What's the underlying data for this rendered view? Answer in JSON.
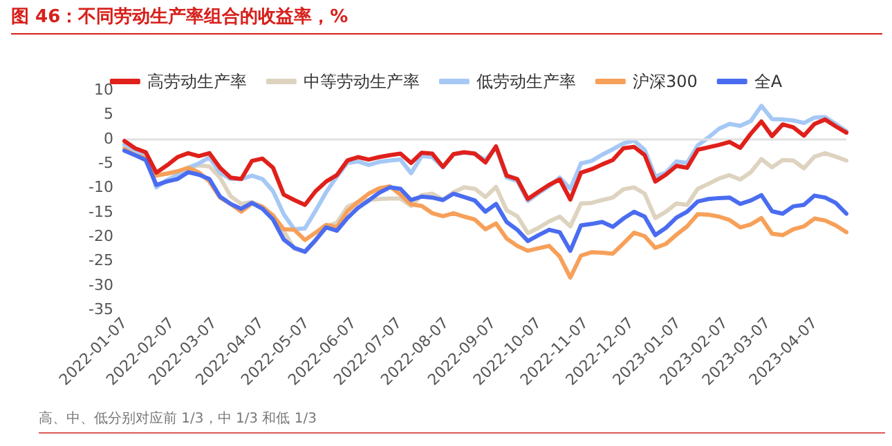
{
  "chart_data": {
    "type": "line",
    "title": "图 46：不同劳动生产率组合的收益率，%",
    "annotations": [
      "高、中、低分别对应前 1/3，中 1/3 和低 1/3"
    ],
    "x": [
      "2022-01-07",
      "2022-01-14",
      "2022-01-21",
      "2022-01-28",
      "2022-02-04",
      "2022-02-11",
      "2022-02-18",
      "2022-02-25",
      "2022-03-04",
      "2022-03-11",
      "2022-03-18",
      "2022-03-25",
      "2022-04-01",
      "2022-04-08",
      "2022-04-15",
      "2022-04-22",
      "2022-04-29",
      "2022-05-06",
      "2022-05-13",
      "2022-05-20",
      "2022-05-27",
      "2022-06-03",
      "2022-06-10",
      "2022-06-17",
      "2022-06-24",
      "2022-07-01",
      "2022-07-08",
      "2022-07-15",
      "2022-07-22",
      "2022-07-29",
      "2022-08-05",
      "2022-08-12",
      "2022-08-19",
      "2022-08-26",
      "2022-09-02",
      "2022-09-09",
      "2022-09-16",
      "2022-09-23",
      "2022-09-30",
      "2022-10-07",
      "2022-10-14",
      "2022-10-21",
      "2022-10-28",
      "2022-11-04",
      "2022-11-11",
      "2022-11-18",
      "2022-11-25",
      "2022-12-02",
      "2022-12-09",
      "2022-12-16",
      "2022-12-23",
      "2022-12-30",
      "2023-01-06",
      "2023-01-13",
      "2023-01-20",
      "2023-01-27",
      "2023-02-03",
      "2023-02-10",
      "2023-02-17",
      "2023-02-24",
      "2023-03-03",
      "2023-03-10",
      "2023-03-17",
      "2023-03-24",
      "2023-03-31",
      "2023-04-07",
      "2023-04-14",
      "2023-04-21",
      "2023-04-28"
    ],
    "series": [
      {
        "name": "高劳动生产率",
        "color": "#e0201b",
        "values": [
          -0.5,
          -2.0,
          -2.8,
          -7.0,
          -5.5,
          -3.8,
          -3.0,
          -3.6,
          -3.0,
          -6.0,
          -8.0,
          -8.3,
          -4.6,
          -4.1,
          -6.0,
          -11.5,
          -12.6,
          -13.6,
          -10.8,
          -8.8,
          -7.5,
          -4.5,
          -3.8,
          -4.3,
          -3.8,
          -3.4,
          -3.1,
          -5.0,
          -2.9,
          -3.1,
          -5.8,
          -3.2,
          -2.8,
          -3.1,
          -4.9,
          -1.6,
          -7.6,
          -8.3,
          -12.4,
          -10.9,
          -9.5,
          -8.4,
          -12.5,
          -7.0,
          -6.3,
          -5.3,
          -4.4,
          -2.0,
          -1.7,
          -3.4,
          -8.8,
          -7.4,
          -5.6,
          -6.0,
          -2.3,
          -1.8,
          -1.3,
          -0.7,
          -1.9,
          1.0,
          3.5,
          0.5,
          2.9,
          2.3,
          0.6,
          3.0,
          3.9,
          2.5,
          1.2
        ]
      },
      {
        "name": "中等劳动生产率",
        "color": "#ddd3bf",
        "values": [
          -1.8,
          -2.6,
          -3.0,
          -7.4,
          -7.2,
          -6.9,
          -6.0,
          -5.5,
          -5.7,
          -8.0,
          -11.8,
          -13.4,
          -13.0,
          -14.0,
          -15.7,
          -19.0,
          -22.6,
          -23.2,
          -21.0,
          -18.0,
          -17.3,
          -14.0,
          -13.0,
          -12.6,
          -12.4,
          -12.3,
          -12.3,
          -13.8,
          -11.6,
          -11.3,
          -12.5,
          -11.0,
          -10.0,
          -10.3,
          -12.0,
          -9.9,
          -14.7,
          -15.9,
          -19.4,
          -18.3,
          -17.0,
          -16.0,
          -18.0,
          -13.3,
          -13.2,
          -12.6,
          -12.1,
          -10.4,
          -10.0,
          -11.3,
          -16.3,
          -15.0,
          -13.3,
          -13.6,
          -10.3,
          -9.3,
          -8.2,
          -7.5,
          -8.4,
          -6.9,
          -4.2,
          -5.9,
          -4.4,
          -4.5,
          -6.1,
          -3.7,
          -3.0,
          -3.7,
          -4.5
        ]
      },
      {
        "name": "低劳动生产率",
        "color": "#a5c8f5",
        "values": [
          -1.2,
          -2.3,
          -3.4,
          -10.0,
          -8.5,
          -7.5,
          -6.0,
          -5.1,
          -3.9,
          -7.0,
          -8.3,
          -8.3,
          -7.6,
          -8.3,
          -10.8,
          -15.5,
          -18.6,
          -18.4,
          -14.8,
          -11.0,
          -7.8,
          -5.0,
          -4.7,
          -5.4,
          -4.8,
          -4.5,
          -4.3,
          -7.1,
          -3.6,
          -3.8,
          -5.9,
          -3.2,
          -2.9,
          -3.1,
          -4.4,
          -1.8,
          -8.0,
          -8.7,
          -12.8,
          -11.2,
          -9.8,
          -8.0,
          -10.3,
          -5.1,
          -4.6,
          -3.3,
          -2.2,
          -1.0,
          -0.4,
          -2.3,
          -7.8,
          -7.0,
          -4.7,
          -5.0,
          -1.4,
          0.2,
          2.0,
          3.0,
          2.6,
          3.6,
          6.7,
          4.0,
          3.9,
          3.7,
          3.2,
          4.3,
          4.4,
          3.0,
          1.5
        ]
      },
      {
        "name": "沪深300",
        "color": "#f7a05a",
        "values": [
          -2.2,
          -3.4,
          -4.0,
          -7.6,
          -7.2,
          -6.7,
          -6.0,
          -6.9,
          -8.8,
          -12.1,
          -13.4,
          -15.0,
          -13.3,
          -14.0,
          -15.8,
          -18.6,
          -18.7,
          -20.8,
          -19.3,
          -17.7,
          -18.2,
          -14.9,
          -13.0,
          -11.3,
          -10.2,
          -9.8,
          -11.5,
          -13.5,
          -13.8,
          -15.3,
          -15.9,
          -15.3,
          -16.0,
          -16.6,
          -18.6,
          -17.4,
          -20.5,
          -22.0,
          -23.0,
          -22.5,
          -22.0,
          -24.2,
          -28.5,
          -24.0,
          -23.3,
          -23.4,
          -23.6,
          -21.5,
          -19.3,
          -20.0,
          -22.4,
          -21.6,
          -19.7,
          -18.0,
          -15.5,
          -15.6,
          -16.0,
          -16.7,
          -18.2,
          -17.6,
          -16.3,
          -19.5,
          -19.8,
          -18.6,
          -18.0,
          -16.4,
          -16.8,
          -17.8,
          -19.2
        ]
      },
      {
        "name": "全A",
        "color": "#4a6cf0",
        "values": [
          -2.5,
          -3.4,
          -4.4,
          -9.5,
          -8.8,
          -8.3,
          -6.9,
          -7.4,
          -8.3,
          -11.9,
          -13.4,
          -14.4,
          -13.2,
          -14.4,
          -16.6,
          -20.7,
          -22.4,
          -23.2,
          -20.8,
          -18.2,
          -18.9,
          -16.3,
          -14.2,
          -12.7,
          -11.1,
          -10.0,
          -10.3,
          -12.6,
          -11.9,
          -12.1,
          -12.6,
          -11.3,
          -12.0,
          -12.7,
          -15.0,
          -13.4,
          -17.1,
          -18.7,
          -21.0,
          -19.8,
          -18.7,
          -19.2,
          -23.0,
          -17.8,
          -17.5,
          -17.1,
          -18.1,
          -16.4,
          -15.0,
          -16.0,
          -19.8,
          -18.3,
          -16.2,
          -15.0,
          -12.9,
          -12.4,
          -12.2,
          -12.1,
          -13.4,
          -12.7,
          -11.6,
          -14.9,
          -15.4,
          -13.9,
          -13.6,
          -11.7,
          -12.1,
          -13.2,
          -15.4
        ]
      }
    ],
    "xlim": [
      "2022-01-07",
      "2023-04-28"
    ],
    "xticks": [
      "2022-01-07",
      "2022-02-07",
      "2022-03-07",
      "2022-04-07",
      "2022-05-07",
      "2022-06-07",
      "2022-07-07",
      "2022-08-07",
      "2022-09-07",
      "2022-10-07",
      "2022-11-07",
      "2022-12-07",
      "2023-01-07",
      "2023-02-07",
      "2023-03-07",
      "2023-04-07"
    ],
    "ylim": [
      -35,
      10
    ],
    "yticks": [
      -35,
      -30,
      -25,
      -20,
      -15,
      -10,
      -5,
      0,
      5,
      10
    ],
    "ref_lines": [
      {
        "axis": "y",
        "value": 0,
        "color": "#e0e0e0"
      }
    ],
    "grid": false,
    "legend": "top",
    "marker": "none",
    "line_style": "solid"
  }
}
